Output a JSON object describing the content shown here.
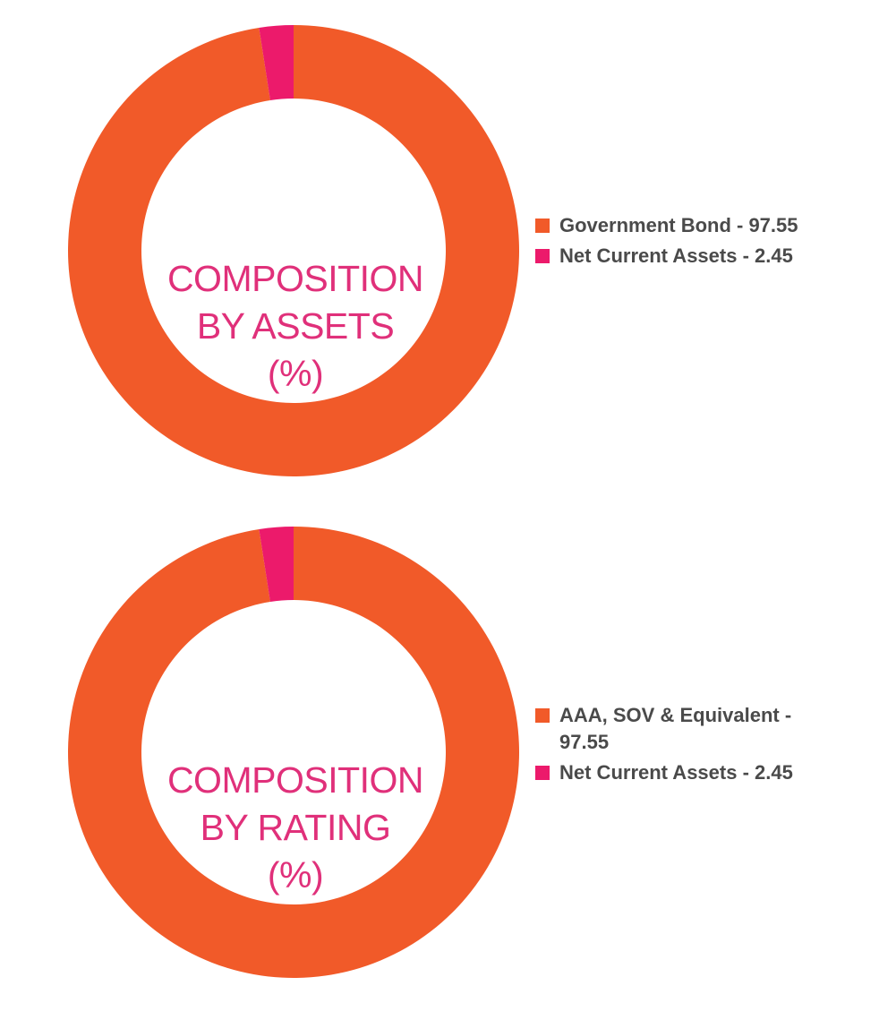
{
  "colors": {
    "primary": "#f15a29",
    "secondary": "#ec1a6b",
    "label": "#e0307a",
    "legend_text": "#4a4a4a"
  },
  "chart_data": [
    {
      "type": "pie",
      "variant": "donut",
      "center_label": [
        "COMPOSITION",
        "BY ASSETS",
        "(%)"
      ],
      "categories": [
        "Government Bond",
        "Net Current Assets"
      ],
      "values": [
        97.55,
        2.45
      ],
      "legend_labels": [
        "Government Bond - 97.55",
        "Net Current Assets - 2.45"
      ],
      "colors": [
        "#f15a29",
        "#ec1a6b"
      ],
      "legend_position": "right"
    },
    {
      "type": "pie",
      "variant": "donut",
      "center_label": [
        "COMPOSITION",
        "BY RATING",
        "(%)"
      ],
      "categories": [
        "AAA, SOV & Equivalent",
        "Net Current Assets"
      ],
      "values": [
        97.55,
        2.45
      ],
      "legend_labels": [
        "AAA, SOV & Equivalent - 97.55",
        "Net Current Assets - 2.45"
      ],
      "colors": [
        "#f15a29",
        "#ec1a6b"
      ],
      "legend_position": "right"
    }
  ]
}
